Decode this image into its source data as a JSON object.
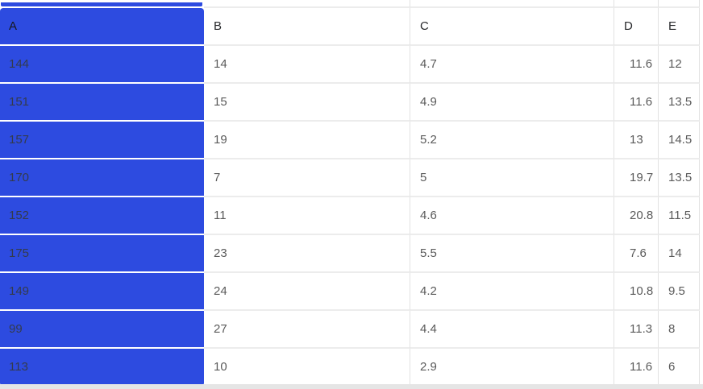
{
  "table": {
    "columns": [
      "A",
      "B",
      "C",
      "D",
      "E"
    ],
    "rows": [
      [
        "144",
        "14",
        "4.7",
        "11.6",
        "12"
      ],
      [
        "151",
        "15",
        "4.9",
        "11.6",
        "13.5"
      ],
      [
        "157",
        "19",
        "5.2",
        "13",
        "14.5"
      ],
      [
        "170",
        "7",
        "5",
        "19.7",
        "13.5"
      ],
      [
        "152",
        "11",
        "4.6",
        "20.8",
        "11.5"
      ],
      [
        "175",
        "23",
        "5.5",
        "7.6",
        "14"
      ],
      [
        "149",
        "24",
        "4.2",
        "10.8",
        "9.5"
      ],
      [
        "99",
        "27",
        "4.4",
        "11.3",
        "8"
      ],
      [
        "113",
        "10",
        "2.9",
        "11.6",
        "6"
      ]
    ],
    "selected_column": "A"
  },
  "colors": {
    "selection_blue": "#2d4be0",
    "row_border": "#ececec",
    "column_border": "#e2e2e2",
    "data_text": "#5a5a5a",
    "header_text": "#27282b",
    "selected_data_text": "#343b4c",
    "selected_header_text": "#17181c",
    "scrollbar_track": "#e5e5e5"
  }
}
